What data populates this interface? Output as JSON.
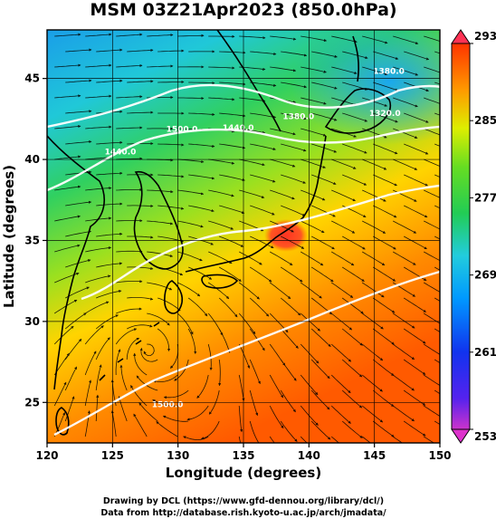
{
  "title": "MSM 03Z21Apr2023 (850.0hPa)",
  "chart_data": {
    "type": "map",
    "xlabel": "Longitude (degrees)",
    "ylabel": "Latitude  (degrees)",
    "xlim": [
      120,
      150
    ],
    "ylim": [
      22.5,
      48
    ],
    "x_ticks": [
      "120",
      "125",
      "130",
      "135",
      "140",
      "145",
      "150"
    ],
    "y_ticks": [
      "25",
      "30",
      "35",
      "40",
      "45"
    ],
    "colorbar": {
      "min": 253,
      "max": 293,
      "labels": [
        "293",
        "285",
        "277",
        "269",
        "261",
        "253"
      ]
    },
    "contour_labels": [
      {
        "text": "1440.0",
        "lon": 125.6,
        "lat": 40.3
      },
      {
        "text": "1500.0",
        "lon": 130.3,
        "lat": 41.7
      },
      {
        "text": "1440.0",
        "lon": 134.6,
        "lat": 41.8
      },
      {
        "text": "1380.0",
        "lon": 139.2,
        "lat": 42.5
      },
      {
        "text": "1320.0",
        "lon": 145.8,
        "lat": 42.7
      },
      {
        "text": "1380.0",
        "lon": 146.1,
        "lat": 45.3
      },
      {
        "text": "1500.0",
        "lon": 129.2,
        "lat": 24.7
      }
    ]
  },
  "credits": {
    "line1": "Drawing by DCL (https://www.gfd-dennou.org/library/dcl/)",
    "line2": "Data from http://database.rish.kyoto-u.ac.jp/arch/jmadata/"
  },
  "colors": {
    "cold": "#1ea0ff",
    "cool": "#22d0c8",
    "mid": "#33cc33",
    "warm": "#ccdd00",
    "hot": "#ff6600",
    "max": "#ff3355",
    "min": "#dd33cc"
  }
}
